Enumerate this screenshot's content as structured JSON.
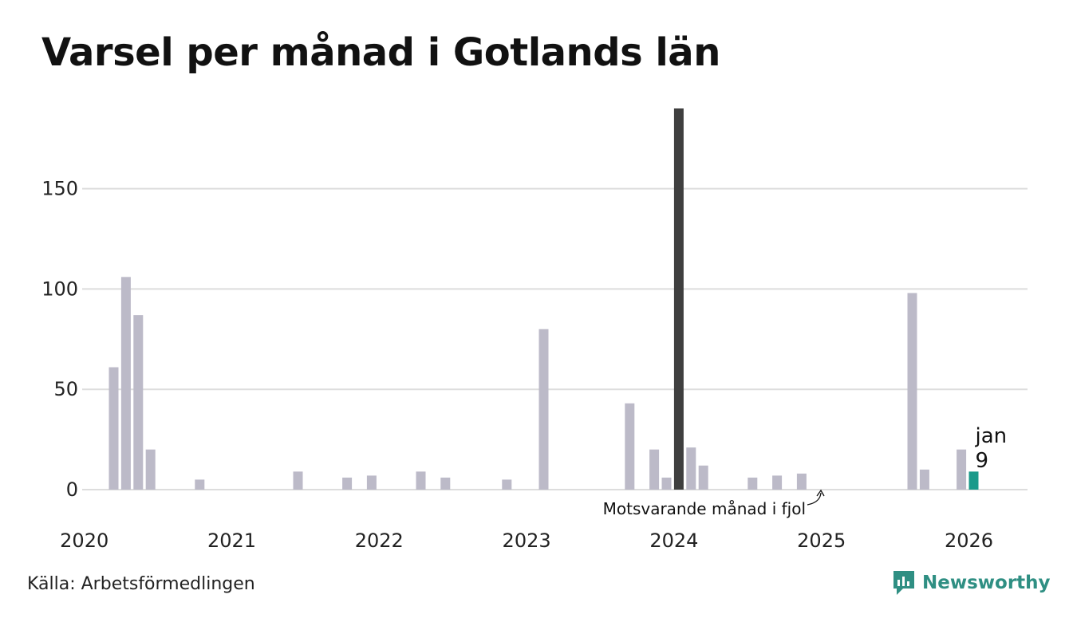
{
  "title": "Varsel per månad i Gotlands län",
  "source": "Källa: Arbetsförmedlingen",
  "brand": {
    "name": "Newsworthy",
    "icon": "newsworthy-logo-icon"
  },
  "colors": {
    "bar": "#bcbac8",
    "highlight": "#3f3f3f",
    "current": "#1a9a8a",
    "grid": "#dddddd",
    "brand": "#2f8f83"
  },
  "chart_data": {
    "type": "bar",
    "title": "Varsel per månad i Gotlands län",
    "xlabel": "",
    "ylabel": "",
    "ylim": [
      0,
      190
    ],
    "yticks": [
      0,
      50,
      100,
      150
    ],
    "grid": true,
    "x_tick_labels": [
      "2020",
      "2021",
      "2022",
      "2023",
      "2024",
      "2025",
      "2026"
    ],
    "series": [
      {
        "name": "Varsel",
        "points": [
          {
            "year": 2020,
            "month": 3,
            "value": 61
          },
          {
            "year": 2020,
            "month": 4,
            "value": 106
          },
          {
            "year": 2020,
            "month": 5,
            "value": 87
          },
          {
            "year": 2020,
            "month": 6,
            "value": 20
          },
          {
            "year": 2020,
            "month": 10,
            "value": 5
          },
          {
            "year": 2021,
            "month": 6,
            "value": 9
          },
          {
            "year": 2021,
            "month": 10,
            "value": 6
          },
          {
            "year": 2021,
            "month": 12,
            "value": 7
          },
          {
            "year": 2022,
            "month": 4,
            "value": 9
          },
          {
            "year": 2022,
            "month": 6,
            "value": 6
          },
          {
            "year": 2022,
            "month": 11,
            "value": 5
          },
          {
            "year": 2023,
            "month": 2,
            "value": 80
          },
          {
            "year": 2023,
            "month": 9,
            "value": 43
          },
          {
            "year": 2023,
            "month": 11,
            "value": 20
          },
          {
            "year": 2023,
            "month": 12,
            "value": 6
          },
          {
            "year": 2024,
            "month": 1,
            "value": 190,
            "highlight": "last_year"
          },
          {
            "year": 2024,
            "month": 2,
            "value": 21
          },
          {
            "year": 2024,
            "month": 3,
            "value": 12
          },
          {
            "year": 2024,
            "month": 7,
            "value": 6
          },
          {
            "year": 2024,
            "month": 9,
            "value": 7
          },
          {
            "year": 2024,
            "month": 11,
            "value": 8
          },
          {
            "year": 2025,
            "month": 8,
            "value": 98
          },
          {
            "year": 2025,
            "month": 9,
            "value": 10
          },
          {
            "year": 2025,
            "month": 12,
            "value": 20
          },
          {
            "year": 2026,
            "month": 1,
            "value": 9,
            "highlight": "current"
          }
        ]
      }
    ],
    "annotations": {
      "last_year_label": "Motsvarande månad i fjol",
      "current_month_label": "jan",
      "current_value_label": "9"
    }
  }
}
